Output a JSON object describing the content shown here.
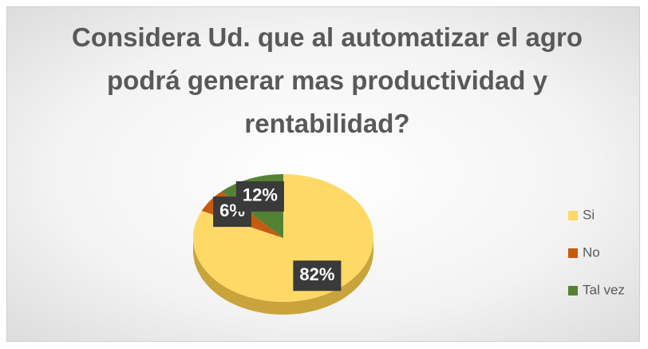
{
  "chart_data": {
    "type": "pie",
    "title": "Considera Ud. que al automatizar el agro podrá generar mas productividad y rentabilidad?",
    "categories": [
      "Si",
      "No",
      "Tal vez"
    ],
    "values": [
      82,
      6,
      12
    ],
    "value_labels": [
      "82%",
      "6%",
      "12%"
    ],
    "colors": [
      "#ffd966",
      "#c55a11",
      "#548235"
    ],
    "legend": "right"
  }
}
